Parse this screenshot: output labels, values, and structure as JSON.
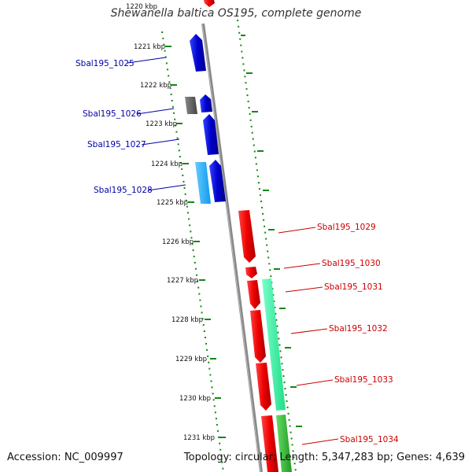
{
  "title": "Shewanella baltica OS195, complete genome",
  "footer": {
    "accession": "Accession: NC_009997",
    "summary": "Topology: circular; Length: 5,347,283 bp; Genes: 4,639"
  },
  "ticks": [
    "1220 kbp",
    "1221 kbp",
    "1222 kbp",
    "1223 kbp",
    "1224 kbp",
    "1225 kbp",
    "1226 kbp",
    "1227 kbp",
    "1228 kbp",
    "1229 kbp",
    "1230 kbp",
    "1231 kbp"
  ],
  "colors": {
    "forward_cds": "#0000ee",
    "reverse_cds": "#ee0000",
    "other_gray": "#555555",
    "cyan": "#22aaff",
    "mint": "#33ee99",
    "green": "#33bb33",
    "backbone": "#888888",
    "tick": "#118811",
    "label_forward": "#0000aa",
    "label_reverse": "#cc0000"
  },
  "genes": [
    {
      "name": "Sbal195_1025",
      "strand": "forward"
    },
    {
      "name": "Sbal195_1026",
      "strand": "forward"
    },
    {
      "name": "Sbal195_1027",
      "strand": "forward"
    },
    {
      "name": "Sbal195_1028",
      "strand": "forward"
    },
    {
      "name": "Sbal195_1029",
      "strand": "reverse"
    },
    {
      "name": "Sbal195_1030",
      "strand": "reverse"
    },
    {
      "name": "Sbal195_1031",
      "strand": "reverse"
    },
    {
      "name": "Sbal195_1032",
      "strand": "reverse"
    },
    {
      "name": "Sbal195_1033",
      "strand": "reverse"
    },
    {
      "name": "Sbal195_1034",
      "strand": "reverse"
    }
  ]
}
